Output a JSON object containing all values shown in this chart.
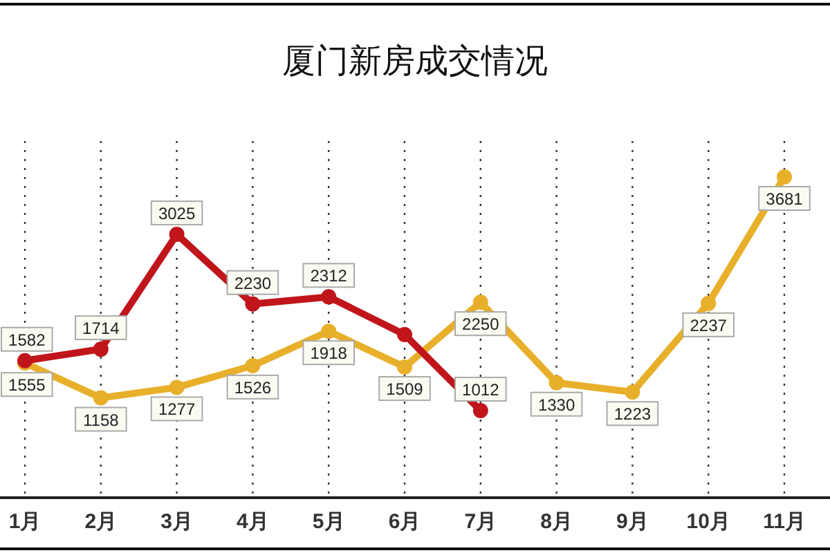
{
  "chart_data": {
    "type": "line",
    "title": "厦门新房成交情况",
    "categories": [
      "1月",
      "2月",
      "3月",
      "4月",
      "5月",
      "6月",
      "7月",
      "8月",
      "9月",
      "10月",
      "11月"
    ],
    "series": [
      {
        "color": "#e8b02a",
        "values": [
          1555,
          1158,
          1277,
          1526,
          1918,
          1509,
          2250,
          1330,
          1223,
          2237,
          3681
        ],
        "value_labels": [
          "1555",
          "1158",
          "1277",
          "1526",
          "1918",
          "1509",
          "2250",
          "1330",
          "1223",
          "2237",
          "3681"
        ]
      },
      {
        "color": "#c0151b",
        "values": [
          1582,
          1714,
          3025,
          2230,
          2312,
          1880,
          1012,
          null,
          null,
          null,
          null
        ],
        "value_labels": [
          "1582",
          "1714",
          "3025",
          "2230",
          "2312",
          null,
          "1012",
          null,
          null,
          null,
          null
        ]
      }
    ],
    "grid": "x",
    "marker": "circle"
  }
}
